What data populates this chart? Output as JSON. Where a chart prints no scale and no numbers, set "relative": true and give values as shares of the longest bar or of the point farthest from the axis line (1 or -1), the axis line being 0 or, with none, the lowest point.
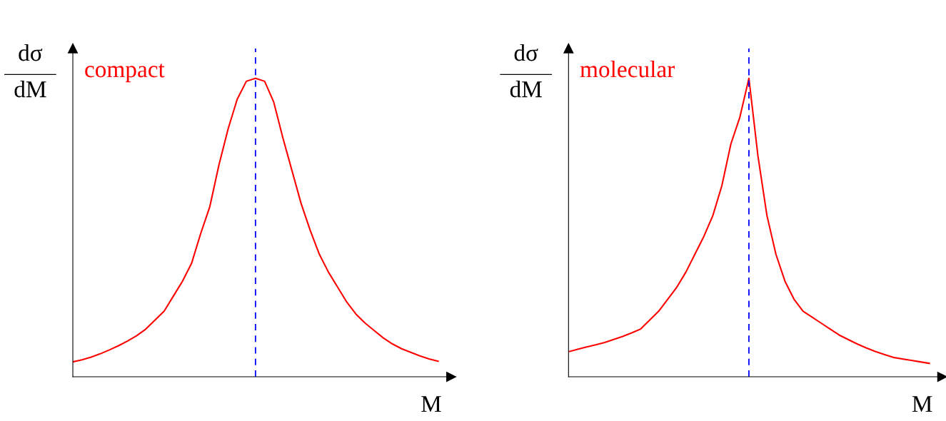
{
  "chart_data": [
    {
      "type": "line",
      "relative": true,
      "ylabel": "dσ\ndM",
      "xlabel": "M",
      "annotations": [
        "compact"
      ],
      "categories": [
        null,
        null,
        null,
        null,
        null,
        null,
        null,
        null,
        null,
        null,
        null,
        null,
        null,
        null,
        null,
        null,
        null,
        null,
        null,
        null,
        null,
        null,
        null,
        null,
        null,
        null,
        null,
        null,
        null,
        null,
        null,
        null,
        null,
        null,
        null,
        null,
        null,
        null,
        null,
        null,
        null
      ],
      "series": [
        {
          "color": "#ff0000",
          "values": [
            0.05,
            0.057,
            0.066,
            0.077,
            0.09,
            0.104,
            0.12,
            0.138,
            0.16,
            0.19,
            0.22,
            0.27,
            0.32,
            0.38,
            0.48,
            0.57,
            0.71,
            0.83,
            0.93,
            0.99,
            1.0,
            0.99,
            0.92,
            0.8,
            0.69,
            0.58,
            0.49,
            0.41,
            0.35,
            0.3,
            0.25,
            0.21,
            0.18,
            0.155,
            0.13,
            0.11,
            0.094,
            0.082,
            0.07,
            0.06,
            0.052
          ]
        }
      ]
    },
    {
      "type": "line",
      "relative": true,
      "ylabel": "dσ\ndM",
      "xlabel": "M",
      "annotations": [
        "molecular"
      ],
      "categories": [
        null,
        null,
        null,
        null,
        null,
        null,
        null,
        null,
        null,
        null,
        null,
        null,
        null,
        null,
        null,
        null,
        null,
        null,
        null,
        null,
        null,
        null,
        null,
        null,
        null,
        null,
        null,
        null,
        null,
        null,
        null,
        null,
        null,
        null,
        null,
        null,
        null,
        null,
        null,
        null,
        null
      ],
      "series": [
        {
          "color": "#ff0000",
          "values": [
            0.084,
            0.092,
            0.1,
            0.107,
            0.115,
            0.125,
            0.135,
            0.147,
            0.16,
            0.19,
            0.22,
            0.26,
            0.3,
            0.35,
            0.41,
            0.47,
            0.54,
            0.64,
            0.78,
            0.87,
            1.0,
            0.74,
            0.54,
            0.41,
            0.32,
            0.26,
            0.22,
            0.2,
            0.18,
            0.16,
            0.14,
            0.125,
            0.11,
            0.097,
            0.085,
            0.075,
            0.065,
            0.06,
            0.055,
            0.05,
            0.045
          ]
        }
      ]
    }
  ]
}
